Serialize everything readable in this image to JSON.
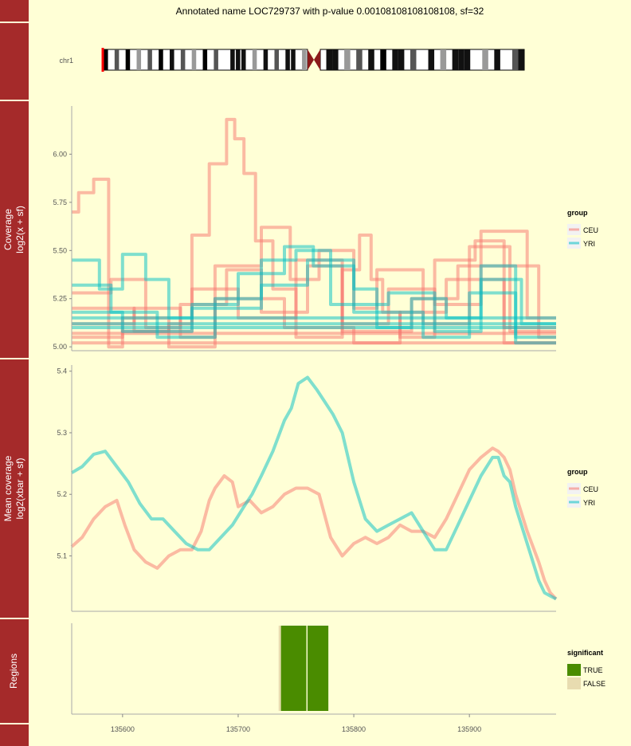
{
  "title": "Annotated name LOC729737 with p-value 0.00108108108108108, sf=32",
  "colors": {
    "background": "#ffffd6",
    "strip": "#a52a2a",
    "CEU": "#f8766d",
    "YRI": "#00bfc4",
    "significant_true": "#4a8c00",
    "significant_false": "#e8dcb0"
  },
  "ideogram": {
    "chromosome": "chr1",
    "highlight_color": "#ff0000"
  },
  "chart_data": [
    {
      "type": "line",
      "panel": "coverage",
      "strip_label": [
        "Coverage",
        "log2(x + sf)"
      ],
      "xlim": [
        135556,
        135975
      ],
      "ylim": [
        4.98,
        6.25
      ],
      "yticks": [
        5.0,
        5.25,
        5.5,
        5.75,
        6.0
      ],
      "ytick_labels": [
        "5.00",
        "5.25",
        "5.50",
        "5.75",
        "6.00"
      ],
      "legend": {
        "title": "group",
        "entries": [
          "CEU",
          "YRI"
        ],
        "placement": "right"
      },
      "highlight_series": [
        {
          "group": "CEU",
          "x": [
            135556,
            135562,
            135562,
            135575,
            135575,
            135588,
            135588,
            135600,
            135600,
            135640,
            135640,
            135660,
            135660,
            135675,
            135675,
            135690,
            135690,
            135697,
            135697,
            135705,
            135705,
            135715,
            135715,
            135730,
            135730,
            135750,
            135750,
            135790,
            135790,
            135805,
            135805,
            135815,
            135815,
            135825,
            135825,
            135840,
            135840,
            135870,
            135870,
            135905,
            135905,
            135930,
            135930,
            135975
          ],
          "y": [
            5.7,
            5.7,
            5.8,
            5.8,
            5.87,
            5.87,
            5.0,
            5.0,
            5.08,
            5.08,
            5.12,
            5.12,
            5.58,
            5.58,
            5.95,
            5.95,
            6.18,
            6.18,
            6.08,
            6.08,
            5.9,
            5.9,
            5.55,
            5.55,
            5.3,
            5.3,
            5.05,
            5.05,
            5.4,
            5.4,
            5.58,
            5.58,
            5.35,
            5.35,
            5.18,
            5.18,
            5.05,
            5.05,
            5.45,
            5.45,
            5.55,
            5.55,
            5.1,
            5.1
          ]
        },
        {
          "group": "CEU",
          "x": [
            135556,
            135610,
            135610,
            135650,
            135650,
            135680,
            135680,
            135720,
            135720,
            135745,
            135745,
            135770,
            135770,
            135800,
            135800,
            135820,
            135820,
            135860,
            135860,
            135900,
            135900,
            135935,
            135935,
            135975
          ],
          "y": [
            5.12,
            5.12,
            5.2,
            5.2,
            5.05,
            5.05,
            5.42,
            5.42,
            5.62,
            5.62,
            5.35,
            5.35,
            5.5,
            5.5,
            5.2,
            5.2,
            5.4,
            5.4,
            5.12,
            5.12,
            5.52,
            5.52,
            5.08,
            5.08
          ]
        },
        {
          "group": "CEU",
          "x": [
            135556,
            135590,
            135590,
            135620,
            135620,
            135650,
            135650,
            135690,
            135690,
            135720,
            135720,
            135760,
            135760,
            135790,
            135790,
            135830,
            135830,
            135870,
            135870,
            135910,
            135910,
            135950,
            135950,
            135975
          ],
          "y": [
            5.28,
            5.28,
            5.35,
            5.35,
            5.1,
            5.1,
            5.22,
            5.22,
            5.4,
            5.4,
            5.18,
            5.18,
            5.42,
            5.42,
            5.12,
            5.12,
            5.3,
            5.3,
            5.22,
            5.22,
            5.6,
            5.6,
            5.15,
            5.15
          ]
        },
        {
          "group": "CEU",
          "x": [
            135556,
            135600,
            135600,
            135640,
            135640,
            135680,
            135680,
            135740,
            135740,
            135800,
            135800,
            135840,
            135840,
            135880,
            135880,
            135930,
            135930,
            135975
          ],
          "y": [
            5.05,
            5.05,
            5.15,
            5.15,
            5.0,
            5.0,
            5.25,
            5.25,
            5.1,
            5.1,
            5.02,
            5.02,
            5.18,
            5.18,
            5.35,
            5.35,
            5.02,
            5.02
          ]
        },
        {
          "group": "CEU",
          "x": [
            135556,
            135610,
            135610,
            135660,
            135660,
            135700,
            135700,
            135750,
            135750,
            135790,
            135790,
            135850,
            135850,
            135890,
            135890,
            135960,
            135960,
            135975
          ],
          "y": [
            5.2,
            5.2,
            5.08,
            5.08,
            5.3,
            5.3,
            5.15,
            5.15,
            5.45,
            5.45,
            5.08,
            5.08,
            5.25,
            5.25,
            5.42,
            5.42,
            5.05,
            5.05
          ]
        },
        {
          "group": "CEU",
          "x": [
            135556,
            135975
          ],
          "y": [
            5.02,
            5.02
          ]
        },
        {
          "group": "CEU",
          "x": [
            135556,
            135975
          ],
          "y": [
            5.07,
            5.07
          ]
        },
        {
          "group": "YRI",
          "x": [
            135556,
            135580,
            135580,
            135600,
            135600,
            135620,
            135620,
            135640,
            135640,
            135660,
            135660,
            135700,
            135700,
            135740,
            135740,
            135765,
            135765,
            135800,
            135800,
            135820,
            135820,
            135850,
            135850,
            135880,
            135880,
            135910,
            135910,
            135940,
            135940,
            135975
          ],
          "y": [
            5.45,
            5.45,
            5.3,
            5.3,
            5.48,
            5.48,
            5.35,
            5.35,
            5.15,
            5.15,
            5.22,
            5.22,
            5.38,
            5.38,
            5.52,
            5.52,
            5.42,
            5.42,
            5.3,
            5.3,
            5.1,
            5.1,
            5.25,
            5.25,
            5.15,
            5.15,
            5.42,
            5.42,
            5.05,
            5.05
          ]
        },
        {
          "group": "YRI",
          "x": [
            135556,
            135590,
            135590,
            135630,
            135630,
            135680,
            135680,
            135720,
            135720,
            135750,
            135750,
            135780,
            135780,
            135830,
            135830,
            135870,
            135870,
            135910,
            135910,
            135945,
            135945,
            135975
          ],
          "y": [
            5.32,
            5.32,
            5.18,
            5.18,
            5.05,
            5.05,
            5.25,
            5.25,
            5.45,
            5.45,
            5.5,
            5.5,
            5.22,
            5.22,
            5.28,
            5.28,
            5.08,
            5.08,
            5.35,
            5.35,
            5.12,
            5.12
          ]
        },
        {
          "group": "YRI",
          "x": [
            135556,
            135600,
            135600,
            135660,
            135660,
            135720,
            135720,
            135760,
            135760,
            135800,
            135800,
            135860,
            135860,
            135900,
            135900,
            135940,
            135940,
            135975
          ],
          "y": [
            5.18,
            5.18,
            5.08,
            5.08,
            5.2,
            5.2,
            5.32,
            5.32,
            5.45,
            5.45,
            5.18,
            5.18,
            5.05,
            5.05,
            5.28,
            5.28,
            5.02,
            5.02
          ]
        },
        {
          "group": "YRI",
          "x": [
            135556,
            135975
          ],
          "y": [
            5.12,
            5.12
          ]
        },
        {
          "group": "YRI",
          "x": [
            135556,
            135975
          ],
          "y": [
            5.15,
            5.15
          ]
        },
        {
          "group": "YRI",
          "x": [
            135556,
            135975
          ],
          "y": [
            5.1,
            5.1
          ]
        }
      ]
    },
    {
      "type": "line",
      "panel": "mean_coverage",
      "strip_label": [
        "Mean coverage",
        "log2(xbar + sf)"
      ],
      "xlim": [
        135556,
        135975
      ],
      "ylim": [
        5.01,
        5.41
      ],
      "yticks": [
        5.1,
        5.2,
        5.3,
        5.4
      ],
      "ytick_labels": [
        "5.1",
        "5.2",
        "5.3",
        "5.4"
      ],
      "legend": {
        "title": "group",
        "entries": [
          "CEU",
          "YRI"
        ],
        "placement": "right"
      },
      "series": [
        {
          "name": "CEU",
          "x": [
            135556,
            135565,
            135575,
            135585,
            135595,
            135602,
            135610,
            135620,
            135630,
            135640,
            135650,
            135660,
            135668,
            135675,
            135680,
            135688,
            135695,
            135700,
            135710,
            135720,
            135730,
            135740,
            135750,
            135760,
            135770,
            135780,
            135790,
            135800,
            135810,
            135820,
            135830,
            135840,
            135850,
            135860,
            135870,
            135880,
            135890,
            135900,
            135910,
            135920,
            135925,
            135930,
            135935,
            135940,
            135950,
            135960,
            135965,
            135970,
            135975
          ],
          "y": [
            5.115,
            5.13,
            5.16,
            5.18,
            5.19,
            5.15,
            5.11,
            5.09,
            5.08,
            5.1,
            5.11,
            5.11,
            5.14,
            5.19,
            5.21,
            5.23,
            5.22,
            5.18,
            5.19,
            5.17,
            5.18,
            5.2,
            5.21,
            5.21,
            5.2,
            5.13,
            5.1,
            5.12,
            5.13,
            5.12,
            5.13,
            5.15,
            5.14,
            5.14,
            5.13,
            5.16,
            5.2,
            5.24,
            5.26,
            5.275,
            5.27,
            5.26,
            5.24,
            5.2,
            5.14,
            5.09,
            5.06,
            5.04,
            5.03
          ]
        },
        {
          "name": "YRI",
          "x": [
            135556,
            135565,
            135575,
            135585,
            135595,
            135605,
            135615,
            135625,
            135635,
            135645,
            135655,
            135665,
            135675,
            135685,
            135695,
            135705,
            135712,
            135720,
            135730,
            135740,
            135746,
            135752,
            135760,
            135768,
            135775,
            135782,
            135790,
            135800,
            135810,
            135820,
            135830,
            135840,
            135850,
            135860,
            135870,
            135880,
            135890,
            135900,
            135910,
            135920,
            135925,
            135930,
            135935,
            135940,
            135950,
            135960,
            135965,
            135970,
            135975
          ],
          "y": [
            5.235,
            5.245,
            5.265,
            5.27,
            5.245,
            5.22,
            5.185,
            5.16,
            5.16,
            5.14,
            5.12,
            5.11,
            5.11,
            5.13,
            5.15,
            5.18,
            5.2,
            5.23,
            5.27,
            5.32,
            5.34,
            5.38,
            5.39,
            5.37,
            5.35,
            5.33,
            5.3,
            5.22,
            5.16,
            5.14,
            5.15,
            5.16,
            5.17,
            5.14,
            5.11,
            5.11,
            5.15,
            5.19,
            5.23,
            5.26,
            5.26,
            5.23,
            5.22,
            5.18,
            5.12,
            5.06,
            5.04,
            5.035,
            5.03
          ]
        }
      ]
    },
    {
      "type": "bar",
      "panel": "regions",
      "strip_label": [
        "Regions"
      ],
      "xlim": [
        135556,
        135975
      ],
      "xticks": [
        135600,
        135700,
        135800,
        135900
      ],
      "xtick_labels": [
        "135600",
        "135700",
        "135800",
        "135900"
      ],
      "legend": {
        "title": "significant",
        "entries": [
          "TRUE",
          "FALSE"
        ],
        "placement": "right"
      },
      "regions": [
        {
          "start": 135735,
          "end": 135737,
          "significant": "FALSE"
        },
        {
          "start": 135737,
          "end": 135759,
          "significant": "TRUE"
        },
        {
          "start": 135760,
          "end": 135778,
          "significant": "TRUE"
        }
      ]
    }
  ]
}
